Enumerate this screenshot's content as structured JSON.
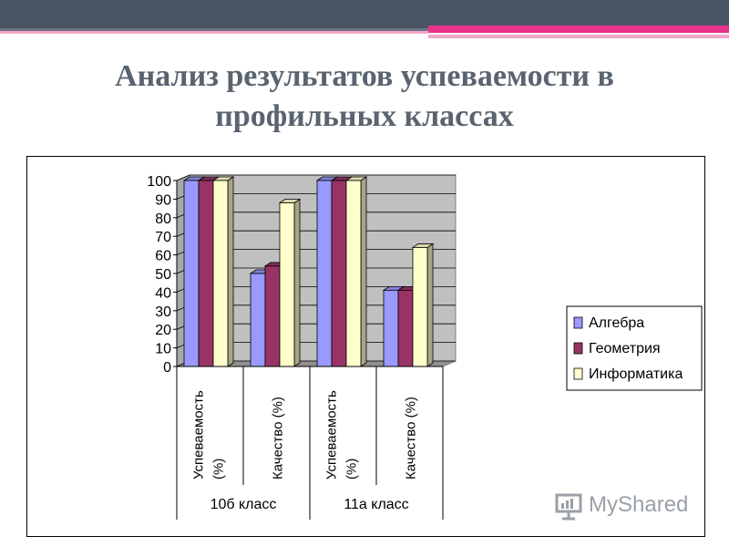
{
  "slide": {
    "title": "Анализ результатов успеваемости в профильных классах"
  },
  "watermark": {
    "text": "MyShared"
  },
  "colors": {
    "top_bar": "#4a5563",
    "accent_pink": "#e8338a",
    "accent_light_pink": "#f4a7c9",
    "series": [
      "#9999ff",
      "#993366",
      "#ffffcc"
    ],
    "plot_wall": "#c0c0c0"
  },
  "chart_data": {
    "type": "bar",
    "groups": [
      {
        "label": "10б класс",
        "categories": [
          "Успеваемость (%)",
          "Качество (%)"
        ]
      },
      {
        "label": "11а класс",
        "categories": [
          "Успеваемость (%)",
          "Качество (%)"
        ]
      }
    ],
    "categories": [
      "Успеваемость (%)",
      "Качество (%)",
      "Успеваемость (%)",
      "Качество (%)"
    ],
    "series": [
      {
        "name": "Алгебра",
        "values": [
          100,
          50,
          100,
          41
        ]
      },
      {
        "name": "Геометрия",
        "values": [
          100,
          54,
          100,
          41
        ]
      },
      {
        "name": "Информатика",
        "values": [
          100,
          88,
          100,
          64
        ]
      }
    ],
    "ylim": [
      0,
      100
    ],
    "yticks": [
      "0",
      "10",
      "20",
      "30",
      "40",
      "50",
      "60",
      "70",
      "80",
      "90",
      "100"
    ],
    "grid": true,
    "legend": "right",
    "three_d": true
  }
}
